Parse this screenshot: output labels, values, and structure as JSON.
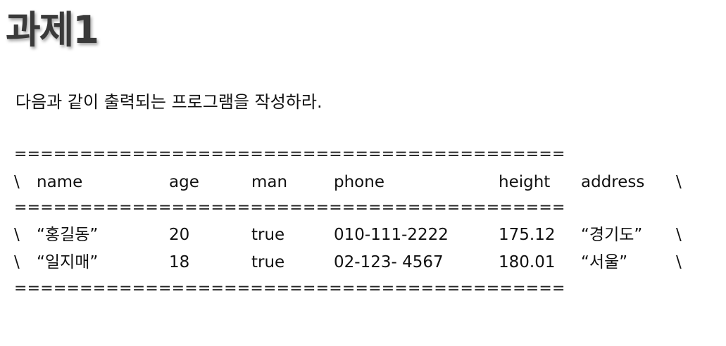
{
  "title": "과제1",
  "instruction": "다음과 같이 출력되는 프로그램을 작성하라.",
  "table": {
    "separator": "==========================================",
    "border_char": "\\",
    "columns": [
      "name",
      "age",
      "man",
      "phone",
      "height",
      "address"
    ],
    "rows": [
      {
        "name": "“홍길동”",
        "age": "20",
        "man": "true",
        "phone": "010-111-2222",
        "height": "175.12",
        "address": "“경기도”"
      },
      {
        "name": "“일지매”",
        "age": "18",
        "man": "true",
        "phone": "02-123- 4567",
        "height": "180.01",
        "address": "“서울”"
      }
    ]
  }
}
